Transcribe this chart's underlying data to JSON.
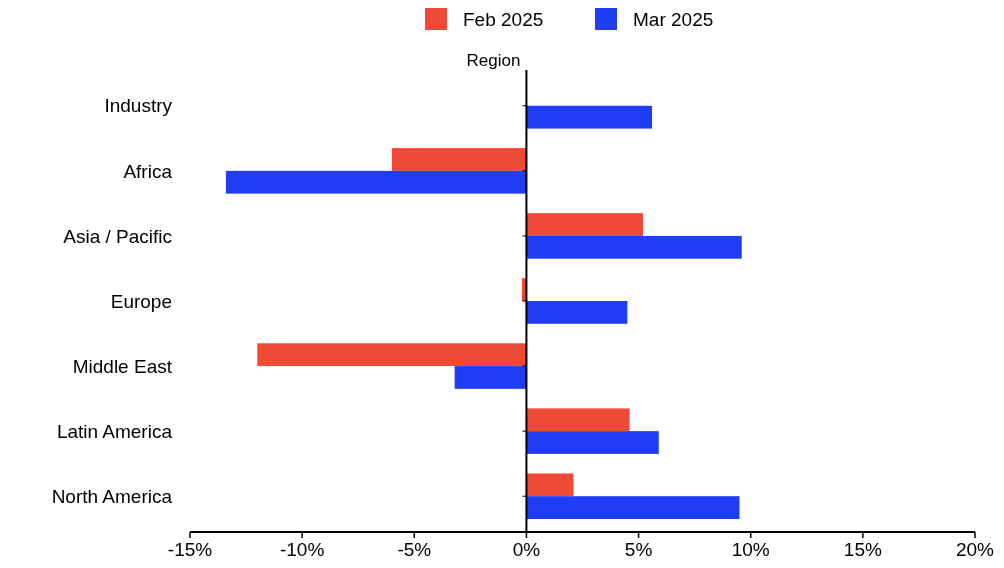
{
  "chart_data": {
    "type": "bar",
    "orientation": "horizontal",
    "ylabel": "Region",
    "categories": [
      "Industry",
      "Africa",
      "Asia / Pacific",
      "Europe",
      "Middle East",
      "Latin America",
      "North America"
    ],
    "series": [
      {
        "name": "Feb 2025",
        "color": "#f04a36",
        "values": [
          null,
          -6.0,
          5.2,
          -0.2,
          -12.0,
          4.6,
          2.1
        ]
      },
      {
        "name": "Mar 2025",
        "color": "#1f3df5",
        "values": [
          5.6,
          -13.4,
          9.6,
          4.5,
          -3.2,
          5.9,
          9.5
        ]
      }
    ],
    "xlim": [
      -15,
      20
    ],
    "xticks": [
      {
        "value": -15,
        "label": "-15%"
      },
      {
        "value": -10,
        "label": "-10%"
      },
      {
        "value": -5,
        "label": "-5%"
      },
      {
        "value": 0,
        "label": "0%"
      },
      {
        "value": 5,
        "label": "5%"
      },
      {
        "value": 10,
        "label": "10%"
      },
      {
        "value": 15,
        "label": "15%"
      },
      {
        "value": 20,
        "label": "20%"
      }
    ],
    "legend": "top"
  }
}
